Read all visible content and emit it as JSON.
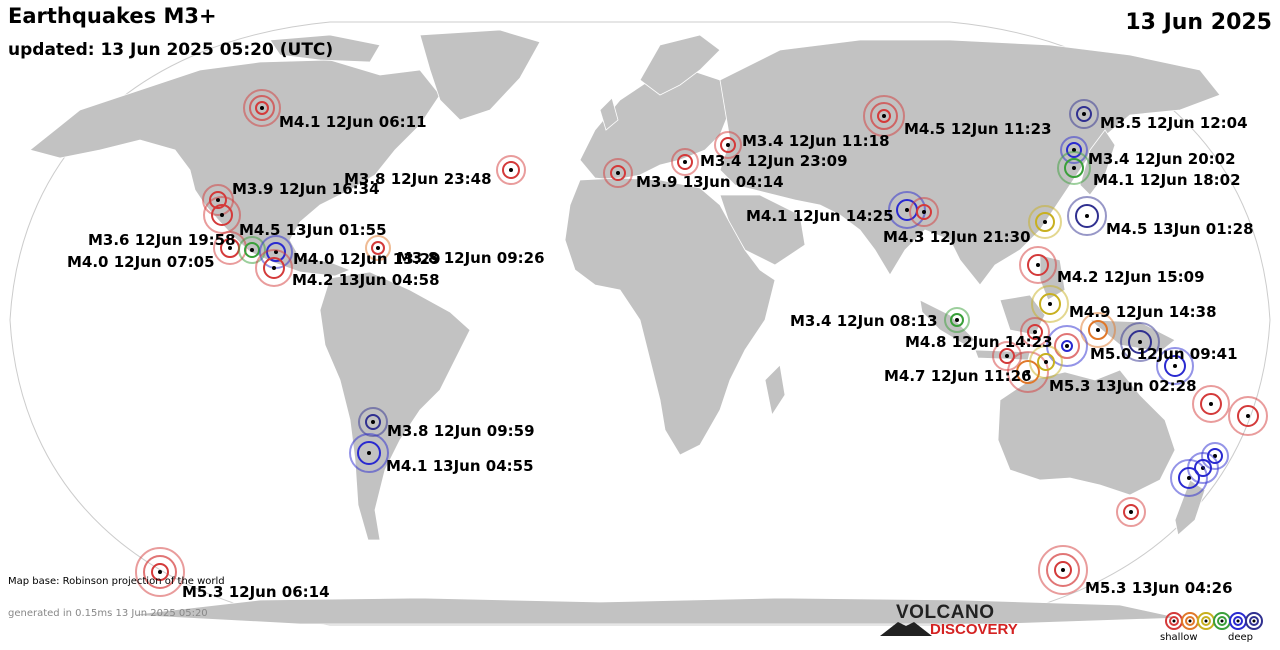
{
  "header": {
    "title": "Earthquakes M3+",
    "updated": "updated: 13 Jun 2025 05:20 (UTC)",
    "date": "13 Jun 2025"
  },
  "footer": {
    "map_base": "Map base: Robinson projection of the world",
    "generated": "generated in 0.15ms 13 Jun 2025 05:20"
  },
  "logo": {
    "line1": "VOLCANO",
    "line2": "DISCOVERY"
  },
  "legend": {
    "shallow": "shallow",
    "deep": "deep",
    "depth_colors": [
      "#d43a3a",
      "#e0782a",
      "#c8b020",
      "#3aa03a",
      "#2a2ad0",
      "#303090"
    ]
  },
  "colors": {
    "ocean": "#ffffff",
    "land": "#c2c2c2",
    "border": "#ffffff"
  },
  "events": [
    {
      "label": "M4.1 12Jun 06:11",
      "depth": "shallow"
    },
    {
      "label": "M3.8 12Jun 23:48",
      "depth": "shallow"
    },
    {
      "label": "M3.9 12Jun 16:34",
      "depth": "shallow"
    },
    {
      "label": "M4.5 13Jun 01:55",
      "depth": "shallow"
    },
    {
      "label": "M3.6 12Jun 19:58",
      "depth": "medium"
    },
    {
      "label": "M4.0 12Jun 07:05",
      "depth": "shallow"
    },
    {
      "label": "M4.0 12Jun 13:29",
      "depth": "deep"
    },
    {
      "label": "M3.8 12Jun 09:26",
      "depth": "shallow"
    },
    {
      "label": "M4.2 13Jun 04:58",
      "depth": "shallow"
    },
    {
      "label": "M3.8 12Jun 09:59",
      "depth": "deep"
    },
    {
      "label": "M4.1 13Jun 04:55",
      "depth": "deep"
    },
    {
      "label": "M5.3 12Jun 06:14",
      "depth": "shallow"
    },
    {
      "label": "M3.9 13Jun 04:14",
      "depth": "shallow"
    },
    {
      "label": "M3.4 12Jun 11:18",
      "depth": "shallow"
    },
    {
      "label": "M3.4 12Jun 23:09",
      "depth": "shallow"
    },
    {
      "label": "M4.5 12Jun 11:23",
      "depth": "shallow"
    },
    {
      "label": "M3.5 12Jun 12:04",
      "depth": "deep"
    },
    {
      "label": "M3.4 12Jun 20:02",
      "depth": "deep"
    },
    {
      "label": "M4.1 12Jun 18:02",
      "depth": "medium"
    },
    {
      "label": "M4.1 12Jun 14:25",
      "depth": "deep"
    },
    {
      "label": "M4.3 12Jun 21:30",
      "depth": "shallow"
    },
    {
      "label": "M4.5 13Jun 01:28",
      "depth": "deep"
    },
    {
      "label": "M4.2 12Jun 15:09",
      "depth": "shallow"
    },
    {
      "label": "M4.9 12Jun 14:38",
      "depth": "medium"
    },
    {
      "label": "M3.4 12Jun 08:13",
      "depth": "medium"
    },
    {
      "label": "M4.8 12Jun 14:23",
      "depth": "shallow"
    },
    {
      "label": "M5.0 12Jun 09:41",
      "depth": "deep"
    },
    {
      "label": "M4.7 12Jun 11:26",
      "depth": "shallow"
    },
    {
      "label": "M5.3 13Jun 02:28",
      "depth": "medium"
    },
    {
      "label": "M5.3 13Jun 04:26",
      "depth": "shallow"
    }
  ]
}
